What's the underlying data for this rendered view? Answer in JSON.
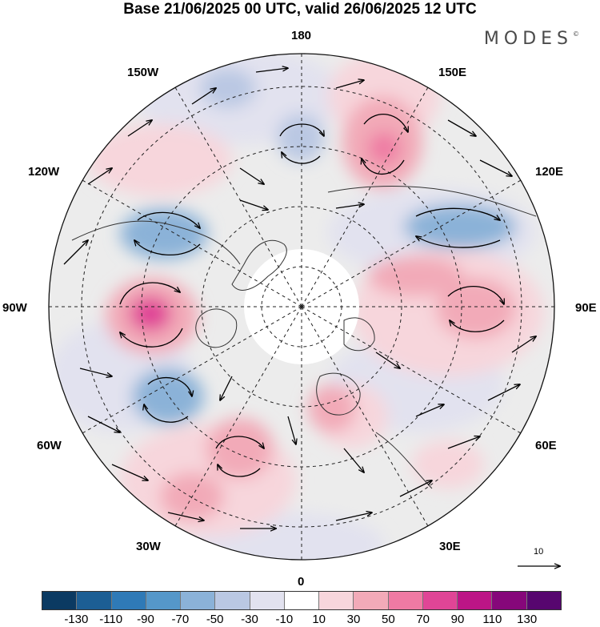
{
  "title": "Base 21/06/2025 00 UTC, valid 26/06/2025 12 UTC",
  "brand": "MODES",
  "brand_mark": "©",
  "lon_labels": {
    "n180": "180",
    "e150": "150E",
    "e120": "120E",
    "e90": "90E",
    "e60": "60E",
    "e30": "30E",
    "s0": "0",
    "w30": "30W",
    "w60": "60W",
    "w90": "90W",
    "w120": "120W",
    "w150": "150W"
  },
  "reference_vector": "10",
  "colorbar": {
    "colors": [
      "#0b3a62",
      "#1c5e94",
      "#2f7ab7",
      "#5597c9",
      "#8bb2d8",
      "#bac8e3",
      "#e2e2ef",
      "#ffffff",
      "#f7d6dc",
      "#f2aab8",
      "#ef7aa3",
      "#e04596",
      "#bc1586",
      "#86077a",
      "#57066f"
    ],
    "ticks": [
      "-130",
      "-110",
      "-90",
      "-70",
      "-50",
      "-30",
      "-10",
      "10",
      "30",
      "50",
      "70",
      "90",
      "110",
      "130"
    ]
  },
  "anomalies": [
    {
      "name": "anomaly-high-90w",
      "color": "#f2aab8"
    },
    {
      "name": "anomaly-core-90w",
      "color": "#e04596"
    },
    {
      "name": "anomaly-high-150e",
      "color": "#f2aab8"
    },
    {
      "name": "anomaly-core-150e",
      "color": "#ef7aa3"
    },
    {
      "name": "anomaly-low-120w",
      "color": "#8bb2d8"
    },
    {
      "name": "anomaly-low-110e",
      "color": "#8bb2d8"
    },
    {
      "name": "anomaly-low-60w",
      "color": "#8bb2d8"
    },
    {
      "name": "anomaly-high-90e",
      "color": "#f2aab8"
    },
    {
      "name": "anomaly-high-45w",
      "color": "#f2aab8"
    },
    {
      "name": "anomaly-low-180",
      "color": "#bac8e3"
    },
    {
      "name": "anomaly-low-165w",
      "color": "#bac8e3"
    }
  ]
}
